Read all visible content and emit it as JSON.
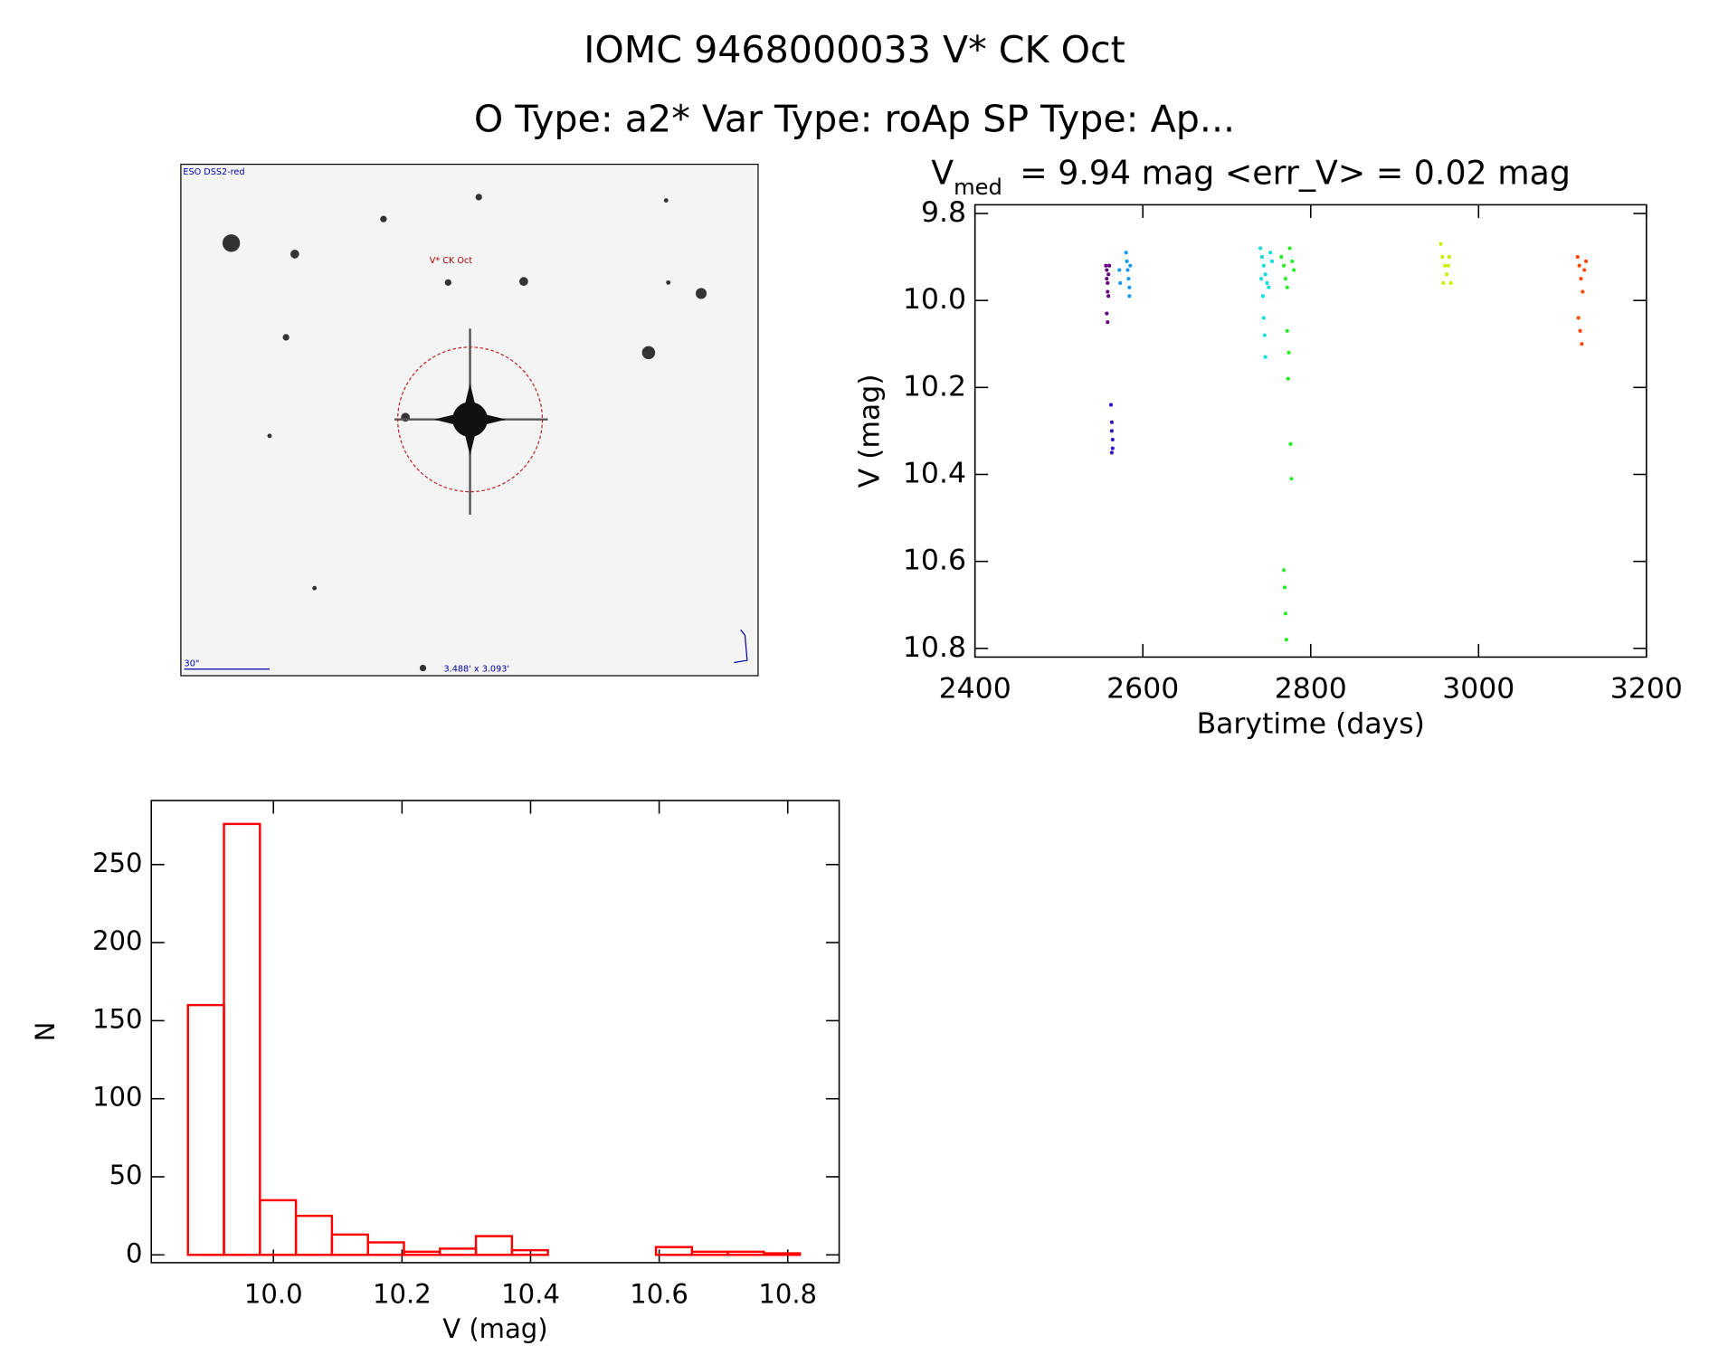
{
  "header": {
    "title": "IOMC 9468000033   V* CK Oct",
    "subtitle": "O Type: a2*  Var Type: roAp  SP Type: Ap..."
  },
  "image": {
    "survey": "ESO DSS2-red",
    "target": "V* CK Oct",
    "scale": "30\"",
    "size": "3.488' x 3.093'"
  },
  "chart_data": [
    {
      "type": "scatter",
      "title": {
        "symbol": "V",
        "subscript": "med",
        "text": "= 9.94 mag <err_V> = 0.02 mag"
      },
      "x_label": "Barytime (days)",
      "y_label": "V (mag)",
      "xlim": [
        2400,
        3200
      ],
      "xticks": [
        2400,
        2600,
        2800,
        3000,
        3200
      ],
      "ylim": [
        10.82,
        9.78
      ],
      "yticks": [
        9.8,
        {
          "value": 10,
          "label": "10.0"
        },
        10.2,
        10.4,
        10.6,
        10.8
      ],
      "series": [
        {
          "color": "#660080",
          "x": [
            2556,
            2557,
            2557,
            2558,
            2558,
            2559,
            2559,
            2560,
            2557,
            2558
          ],
          "values": [
            9.92,
            9.93,
            9.95,
            9.96,
            9.98,
            9.94,
            9.99,
            9.92,
            10.03,
            10.05
          ]
        },
        {
          "color": "#3311cc",
          "x": [
            2562,
            2563,
            2563,
            2564,
            2564,
            2563
          ],
          "values": [
            10.24,
            10.28,
            10.3,
            10.32,
            10.34,
            10.35
          ]
        },
        {
          "color": "#1199ee",
          "x": [
            2572,
            2573,
            2580,
            2581,
            2582,
            2583,
            2584,
            2584,
            2585
          ],
          "values": [
            9.93,
            9.96,
            9.89,
            9.91,
            9.93,
            9.95,
            9.97,
            9.99,
            9.92
          ]
        },
        {
          "color": "#11dddd",
          "x": [
            2740,
            2742,
            2744,
            2746,
            2748,
            2750,
            2752,
            2754,
            2744,
            2745,
            2746,
            2741,
            2743
          ],
          "values": [
            9.88,
            9.9,
            9.92,
            9.94,
            9.96,
            9.97,
            9.89,
            9.91,
            10.04,
            10.08,
            10.13,
            9.95,
            9.99
          ]
        },
        {
          "color": "#22ee22",
          "x": [
            2765,
            2768,
            2770,
            2772,
            2775,
            2778,
            2780,
            2772,
            2774,
            2773,
            2776,
            2777,
            2768,
            2769,
            2770,
            2771
          ],
          "values": [
            9.9,
            9.92,
            9.95,
            9.97,
            9.88,
            9.91,
            9.93,
            10.07,
            10.12,
            10.18,
            10.33,
            10.41,
            10.62,
            10.66,
            10.72,
            10.78
          ]
        },
        {
          "color": "#ccee00",
          "x": [
            2955,
            2957,
            2960,
            2962,
            2965,
            2967,
            2958,
            2964
          ],
          "values": [
            9.87,
            9.9,
            9.92,
            9.94,
            9.9,
            9.96,
            9.96,
            9.92
          ]
        },
        {
          "color": "#ff4400",
          "x": [
            3118,
            3120,
            3122,
            3124,
            3126,
            3128,
            3119,
            3121,
            3123
          ],
          "values": [
            9.9,
            9.92,
            9.95,
            9.98,
            9.93,
            9.91,
            10.04,
            10.07,
            10.1
          ]
        }
      ]
    },
    {
      "type": "histogram",
      "color": "#ff0000",
      "x_label": "V (mag)",
      "y_label": "N",
      "bins": [
        9.867,
        9.923,
        9.979,
        10.035,
        10.091,
        10.147,
        10.203,
        10.259,
        10.315,
        10.371,
        10.427,
        10.483,
        10.539,
        10.595,
        10.651,
        10.707,
        10.763,
        10.819
      ],
      "values": [
        160,
        276,
        35,
        25,
        13,
        8,
        2,
        4,
        12,
        3,
        0,
        0,
        0,
        5,
        2,
        2,
        1
      ],
      "xlim": [
        9.81,
        10.88
      ],
      "xticks": [
        {
          "value": 10,
          "label": "10.0"
        },
        10.2,
        10.4,
        10.6,
        10.8
      ],
      "ylim": [
        -5,
        291
      ],
      "yticks": [
        0,
        50,
        100,
        150,
        200,
        250
      ]
    }
  ]
}
